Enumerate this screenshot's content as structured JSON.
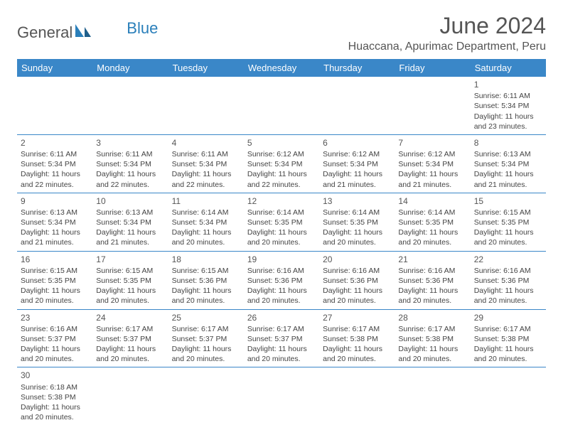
{
  "logo": {
    "general": "General",
    "blue": "Blue"
  },
  "title": "June 2024",
  "location": "Huaccana, Apurimac Department, Peru",
  "day_headers": [
    "Sunday",
    "Monday",
    "Tuesday",
    "Wednesday",
    "Thursday",
    "Friday",
    "Saturday"
  ],
  "weeks": [
    [
      null,
      null,
      null,
      null,
      null,
      null,
      {
        "n": "1",
        "sr": "Sunrise: 6:11 AM",
        "ss": "Sunset: 5:34 PM",
        "d1": "Daylight: 11 hours",
        "d2": "and 23 minutes."
      }
    ],
    [
      {
        "n": "2",
        "sr": "Sunrise: 6:11 AM",
        "ss": "Sunset: 5:34 PM",
        "d1": "Daylight: 11 hours",
        "d2": "and 22 minutes."
      },
      {
        "n": "3",
        "sr": "Sunrise: 6:11 AM",
        "ss": "Sunset: 5:34 PM",
        "d1": "Daylight: 11 hours",
        "d2": "and 22 minutes."
      },
      {
        "n": "4",
        "sr": "Sunrise: 6:11 AM",
        "ss": "Sunset: 5:34 PM",
        "d1": "Daylight: 11 hours",
        "d2": "and 22 minutes."
      },
      {
        "n": "5",
        "sr": "Sunrise: 6:12 AM",
        "ss": "Sunset: 5:34 PM",
        "d1": "Daylight: 11 hours",
        "d2": "and 22 minutes."
      },
      {
        "n": "6",
        "sr": "Sunrise: 6:12 AM",
        "ss": "Sunset: 5:34 PM",
        "d1": "Daylight: 11 hours",
        "d2": "and 21 minutes."
      },
      {
        "n": "7",
        "sr": "Sunrise: 6:12 AM",
        "ss": "Sunset: 5:34 PM",
        "d1": "Daylight: 11 hours",
        "d2": "and 21 minutes."
      },
      {
        "n": "8",
        "sr": "Sunrise: 6:13 AM",
        "ss": "Sunset: 5:34 PM",
        "d1": "Daylight: 11 hours",
        "d2": "and 21 minutes."
      }
    ],
    [
      {
        "n": "9",
        "sr": "Sunrise: 6:13 AM",
        "ss": "Sunset: 5:34 PM",
        "d1": "Daylight: 11 hours",
        "d2": "and 21 minutes."
      },
      {
        "n": "10",
        "sr": "Sunrise: 6:13 AM",
        "ss": "Sunset: 5:34 PM",
        "d1": "Daylight: 11 hours",
        "d2": "and 21 minutes."
      },
      {
        "n": "11",
        "sr": "Sunrise: 6:14 AM",
        "ss": "Sunset: 5:34 PM",
        "d1": "Daylight: 11 hours",
        "d2": "and 20 minutes."
      },
      {
        "n": "12",
        "sr": "Sunrise: 6:14 AM",
        "ss": "Sunset: 5:35 PM",
        "d1": "Daylight: 11 hours",
        "d2": "and 20 minutes."
      },
      {
        "n": "13",
        "sr": "Sunrise: 6:14 AM",
        "ss": "Sunset: 5:35 PM",
        "d1": "Daylight: 11 hours",
        "d2": "and 20 minutes."
      },
      {
        "n": "14",
        "sr": "Sunrise: 6:14 AM",
        "ss": "Sunset: 5:35 PM",
        "d1": "Daylight: 11 hours",
        "d2": "and 20 minutes."
      },
      {
        "n": "15",
        "sr": "Sunrise: 6:15 AM",
        "ss": "Sunset: 5:35 PM",
        "d1": "Daylight: 11 hours",
        "d2": "and 20 minutes."
      }
    ],
    [
      {
        "n": "16",
        "sr": "Sunrise: 6:15 AM",
        "ss": "Sunset: 5:35 PM",
        "d1": "Daylight: 11 hours",
        "d2": "and 20 minutes."
      },
      {
        "n": "17",
        "sr": "Sunrise: 6:15 AM",
        "ss": "Sunset: 5:35 PM",
        "d1": "Daylight: 11 hours",
        "d2": "and 20 minutes."
      },
      {
        "n": "18",
        "sr": "Sunrise: 6:15 AM",
        "ss": "Sunset: 5:36 PM",
        "d1": "Daylight: 11 hours",
        "d2": "and 20 minutes."
      },
      {
        "n": "19",
        "sr": "Sunrise: 6:16 AM",
        "ss": "Sunset: 5:36 PM",
        "d1": "Daylight: 11 hours",
        "d2": "and 20 minutes."
      },
      {
        "n": "20",
        "sr": "Sunrise: 6:16 AM",
        "ss": "Sunset: 5:36 PM",
        "d1": "Daylight: 11 hours",
        "d2": "and 20 minutes."
      },
      {
        "n": "21",
        "sr": "Sunrise: 6:16 AM",
        "ss": "Sunset: 5:36 PM",
        "d1": "Daylight: 11 hours",
        "d2": "and 20 minutes."
      },
      {
        "n": "22",
        "sr": "Sunrise: 6:16 AM",
        "ss": "Sunset: 5:36 PM",
        "d1": "Daylight: 11 hours",
        "d2": "and 20 minutes."
      }
    ],
    [
      {
        "n": "23",
        "sr": "Sunrise: 6:16 AM",
        "ss": "Sunset: 5:37 PM",
        "d1": "Daylight: 11 hours",
        "d2": "and 20 minutes."
      },
      {
        "n": "24",
        "sr": "Sunrise: 6:17 AM",
        "ss": "Sunset: 5:37 PM",
        "d1": "Daylight: 11 hours",
        "d2": "and 20 minutes."
      },
      {
        "n": "25",
        "sr": "Sunrise: 6:17 AM",
        "ss": "Sunset: 5:37 PM",
        "d1": "Daylight: 11 hours",
        "d2": "and 20 minutes."
      },
      {
        "n": "26",
        "sr": "Sunrise: 6:17 AM",
        "ss": "Sunset: 5:37 PM",
        "d1": "Daylight: 11 hours",
        "d2": "and 20 minutes."
      },
      {
        "n": "27",
        "sr": "Sunrise: 6:17 AM",
        "ss": "Sunset: 5:38 PM",
        "d1": "Daylight: 11 hours",
        "d2": "and 20 minutes."
      },
      {
        "n": "28",
        "sr": "Sunrise: 6:17 AM",
        "ss": "Sunset: 5:38 PM",
        "d1": "Daylight: 11 hours",
        "d2": "and 20 minutes."
      },
      {
        "n": "29",
        "sr": "Sunrise: 6:17 AM",
        "ss": "Sunset: 5:38 PM",
        "d1": "Daylight: 11 hours",
        "d2": "and 20 minutes."
      }
    ],
    [
      {
        "n": "30",
        "sr": "Sunrise: 6:18 AM",
        "ss": "Sunset: 5:38 PM",
        "d1": "Daylight: 11 hours",
        "d2": "and 20 minutes."
      },
      null,
      null,
      null,
      null,
      null,
      null
    ]
  ]
}
